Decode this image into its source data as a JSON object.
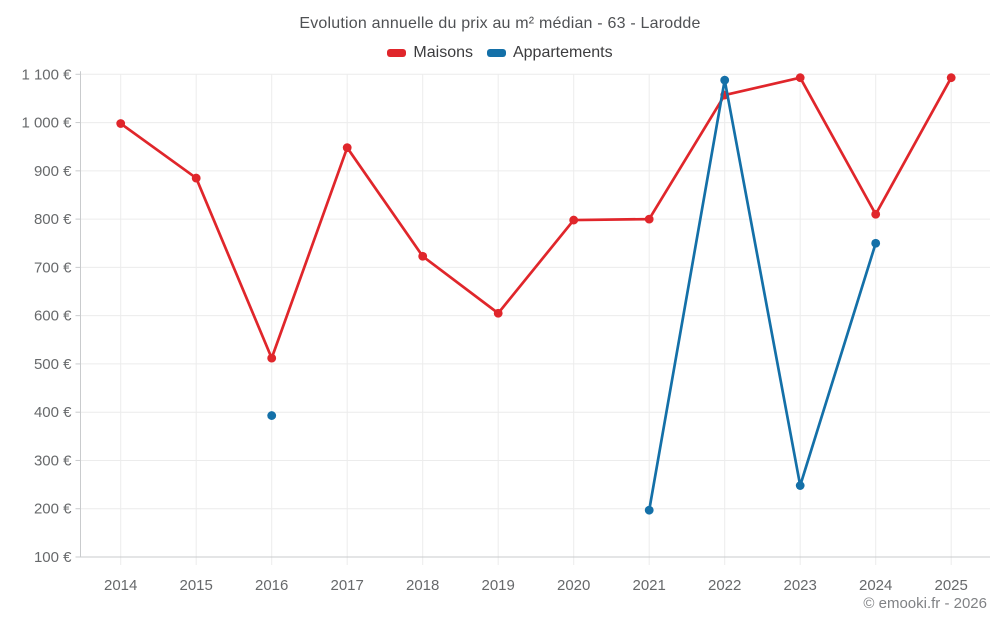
{
  "title": "Evolution annuelle du prix au m² médian - 63 - Larodde",
  "legend": [
    {
      "label": "Maisons",
      "color": "#e0262b"
    },
    {
      "label": "Appartements",
      "color": "#1470a8"
    }
  ],
  "footer": {
    "credit": "© emooki.fr - 2026"
  },
  "colors": {
    "background": "#ffffff",
    "grid": "#ececec",
    "axis": "#c9cbcd",
    "tick_text": "#67696b",
    "title_text": "#4f5154",
    "legend_text": "#3c3c3e",
    "credit_text": "#808285",
    "maisons": "#e0262b",
    "appartements": "#1470a8"
  },
  "chart_data": {
    "type": "line",
    "title": "Evolution annuelle du prix au m² médian - 63 - Larodde",
    "categories": [
      "2014",
      "2015",
      "2016",
      "2017",
      "2018",
      "2019",
      "2020",
      "2021",
      "2022",
      "2023",
      "2024",
      "2025"
    ],
    "series": [
      {
        "name": "Maisons",
        "color": "#e0262b",
        "values": [
          998,
          885,
          512,
          948,
          723,
          605,
          798,
          800,
          1057,
          1093,
          810,
          1093
        ]
      },
      {
        "name": "Appartements",
        "color": "#1470a8",
        "values": [
          null,
          null,
          393,
          null,
          null,
          null,
          null,
          197,
          1088,
          248,
          750,
          null
        ]
      }
    ],
    "xlabel": "",
    "ylabel": "",
    "ylim": [
      100,
      1100
    ],
    "yticks": [
      {
        "value": 100,
        "label": "100 €"
      },
      {
        "value": 200,
        "label": "200 €"
      },
      {
        "value": 300,
        "label": "300 €"
      },
      {
        "value": 400,
        "label": "400 €"
      },
      {
        "value": 500,
        "label": "500 €"
      },
      {
        "value": 600,
        "label": "600 €"
      },
      {
        "value": 700,
        "label": "700 €"
      },
      {
        "value": 800,
        "label": "800 €"
      },
      {
        "value": 900,
        "label": "900 €"
      },
      {
        "value": 1000,
        "label": "1 000 €"
      },
      {
        "value": 1100,
        "label": "1 100 €"
      }
    ],
    "grid": true,
    "legend_position": "top"
  }
}
